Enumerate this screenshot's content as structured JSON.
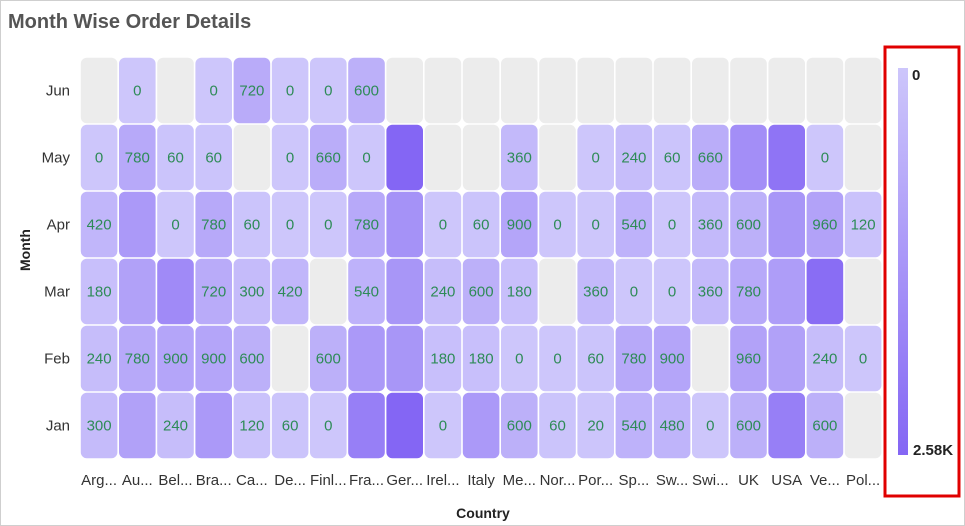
{
  "chart_data": {
    "type": "heatmap",
    "title": "Month Wise Order Details",
    "xlabel": "Country",
    "ylabel": "Month",
    "x_categories": [
      "Arg...",
      "Au...",
      "Bel...",
      "Bra...",
      "Ca...",
      "De...",
      "Finl...",
      "Fra...",
      "Ger...",
      "Irel...",
      "Italy",
      "Me...",
      "Nor...",
      "Por...",
      "Sp...",
      "Sw...",
      "Swi...",
      "UK",
      "USA",
      "Ve...",
      "Pol..."
    ],
    "y_categories": [
      "Jun",
      "May",
      "Apr",
      "Mar",
      "Feb",
      "Jan"
    ],
    "values": [
      [
        null,
        0,
        null,
        0,
        720,
        0,
        0,
        600,
        null,
        null,
        null,
        null,
        null,
        null,
        null,
        null,
        null,
        null,
        null,
        null,
        null
      ],
      [
        0,
        780,
        60,
        60,
        null,
        0,
        660,
        0,
        2580,
        null,
        null,
        360,
        null,
        0,
        240,
        60,
        660,
        1500,
        2200,
        0,
        null
      ],
      [
        420,
        1200,
        0,
        780,
        60,
        0,
        0,
        780,
        1400,
        0,
        60,
        900,
        0,
        0,
        540,
        0,
        360,
        600,
        1300,
        960,
        120
      ],
      [
        180,
        1000,
        1600,
        720,
        300,
        420,
        null,
        540,
        1300,
        240,
        600,
        180,
        null,
        360,
        0,
        0,
        360,
        780,
        1100,
        2400,
        null
      ],
      [
        240,
        780,
        900,
        900,
        600,
        null,
        600,
        1200,
        1300,
        180,
        180,
        0,
        0,
        60,
        780,
        900,
        null,
        960,
        1000,
        240,
        0
      ],
      [
        300,
        1000,
        240,
        1200,
        120,
        60,
        0,
        1900,
        2580,
        0,
        1200,
        600,
        60,
        20,
        540,
        480,
        0,
        600,
        1900,
        600,
        null
      ]
    ],
    "labels": [
      [
        "",
        "0",
        "",
        "0",
        "720",
        "0",
        "0",
        "600",
        "",
        "",
        "",
        "",
        "",
        "",
        "",
        "",
        "",
        "",
        "",
        "",
        ""
      ],
      [
        "0",
        "780",
        "60",
        "60",
        "",
        "0",
        "660",
        "0",
        "",
        "",
        "",
        "360",
        "",
        "0",
        "240",
        "60",
        "660",
        "",
        "",
        "0",
        ""
      ],
      [
        "420",
        "",
        "0",
        "780",
        "60",
        "0",
        "0",
        "780",
        "",
        "0",
        "60",
        "900",
        "0",
        "0",
        "540",
        "0",
        "360",
        "600",
        "",
        "960",
        "120"
      ],
      [
        "180",
        "",
        "",
        "720",
        "300",
        "420",
        "",
        "540",
        "",
        "240",
        "600",
        "180",
        "",
        "360",
        "0",
        "0",
        "360",
        "780",
        "",
        "",
        ""
      ],
      [
        "240",
        "780",
        "900",
        "900",
        "600",
        "",
        "600",
        "",
        "",
        "180",
        "180",
        "0",
        "0",
        "60",
        "780",
        "900",
        "",
        "960",
        "",
        "240",
        "0"
      ],
      [
        "300",
        "",
        "240",
        "",
        "120",
        "60",
        "0",
        "",
        "",
        "0",
        "",
        "600",
        "60",
        "20",
        "540",
        "480",
        "0",
        "600",
        "",
        "600",
        ""
      ]
    ],
    "color_range": {
      "min": 0,
      "max": 2580,
      "min_color": "#cdc6fb",
      "max_color": "#8466f4",
      "empty_color": "#ececec"
    },
    "legend": {
      "min_label": "0",
      "max_label": "2.58K",
      "placement": "right",
      "highlight_color": "#e00000"
    }
  }
}
